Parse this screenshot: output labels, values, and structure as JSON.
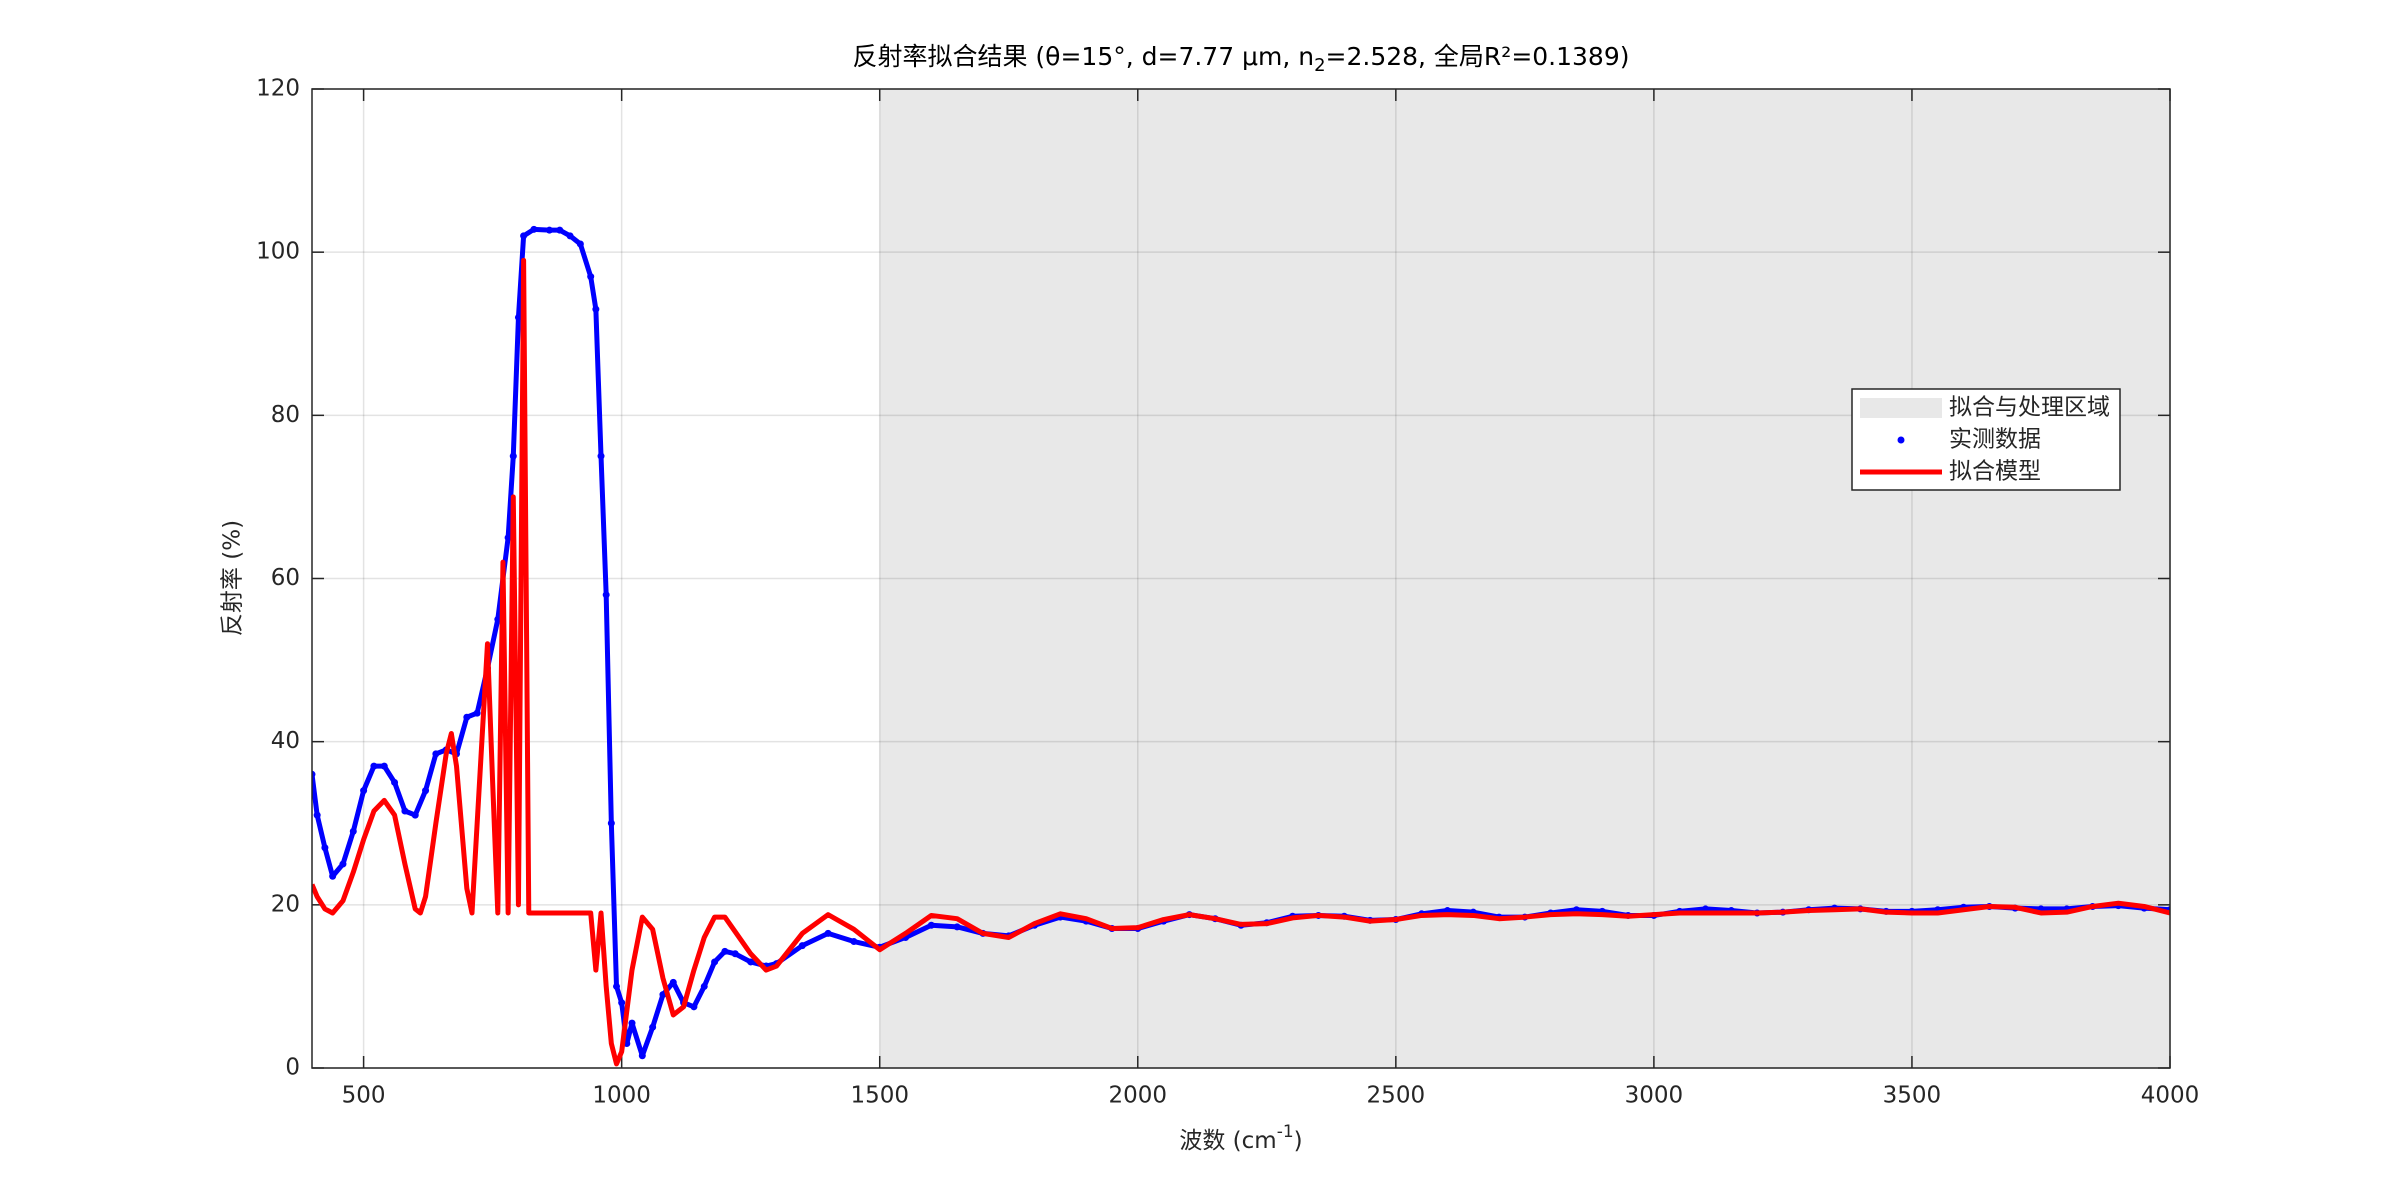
{
  "chart_data": {
    "type": "line",
    "title": [
      "反射率拟合结果 (θ=15°, d=7.77 μm, n",
      "2",
      "=2.528, 全局R²=0.1389)"
    ],
    "x_label": [
      "波数 (cm",
      "-1",
      ")"
    ],
    "y_label": "反射率 (%)",
    "xlim": [
      400,
      4000
    ],
    "xticks": [
      500,
      1000,
      1500,
      2000,
      2500,
      3000,
      3500,
      4000
    ],
    "ylim": [
      0,
      120
    ],
    "yticks": [
      0,
      20,
      40,
      60,
      80,
      100,
      120
    ],
    "grid": true,
    "legend_position": "right",
    "shaded_region": {
      "name": "拟合与处理区域",
      "x": [
        1500,
        4000
      ],
      "color": "#e8e8e8"
    },
    "series": [
      {
        "name": "实测数据",
        "color": "#0000ff",
        "style": "dots",
        "x": [
          400,
          410,
          425,
          440,
          460,
          480,
          500,
          520,
          540,
          560,
          580,
          600,
          620,
          640,
          660,
          680,
          700,
          720,
          740,
          760,
          780,
          790,
          800,
          810,
          830,
          860,
          880,
          900,
          920,
          940,
          950,
          960,
          970,
          980,
          990,
          1000,
          1010,
          1020,
          1040,
          1060,
          1080,
          1100,
          1120,
          1140,
          1160,
          1180,
          1200,
          1220,
          1250,
          1280,
          1300,
          1350,
          1400,
          1450,
          1500,
          1550,
          1600,
          1650,
          1700,
          1750,
          1800,
          1850,
          1900,
          1950,
          2000,
          2050,
          2100,
          2150,
          2200,
          2250,
          2300,
          2350,
          2400,
          2450,
          2500,
          2550,
          2600,
          2650,
          2700,
          2750,
          2800,
          2850,
          2900,
          2950,
          3000,
          3050,
          3100,
          3150,
          3200,
          3250,
          3300,
          3350,
          3400,
          3450,
          3500,
          3550,
          3600,
          3650,
          3700,
          3750,
          3800,
          3850,
          3900,
          3950,
          4000
        ],
        "values": [
          36,
          31,
          27,
          23.5,
          25,
          29,
          34,
          37,
          37,
          35,
          31.5,
          31,
          34,
          38.5,
          39,
          38.5,
          43,
          43.5,
          49,
          55,
          65,
          75,
          92,
          102,
          102.8,
          102.7,
          102.7,
          102,
          101,
          97,
          93,
          75,
          58,
          30,
          10,
          8,
          3,
          5.5,
          1.5,
          5,
          9,
          10.5,
          8,
          7.5,
          10,
          13,
          14.3,
          14,
          13,
          12.5,
          12.8,
          15,
          16.5,
          15.5,
          14.8,
          16,
          17.5,
          17.3,
          16.5,
          16.2,
          17.5,
          18.5,
          18,
          17.1,
          17.1,
          18,
          18.8,
          18.3,
          17.5,
          17.8,
          18.6,
          18.7,
          18.6,
          18.1,
          18.2,
          18.9,
          19.3,
          19.1,
          18.5,
          18.5,
          19,
          19.4,
          19.2,
          18.7,
          18.7,
          19.2,
          19.5,
          19.3,
          19,
          19.1,
          19.4,
          19.6,
          19.5,
          19.2,
          19.2,
          19.4,
          19.7,
          19.8,
          19.6,
          19.5,
          19.5,
          19.8,
          19.9,
          19.6,
          19.4
        ]
      },
      {
        "name": "拟合模型",
        "color": "#ff0000",
        "style": "line",
        "x": [
          400,
          410,
          425,
          440,
          460,
          480,
          500,
          520,
          540,
          560,
          580,
          600,
          610,
          620,
          640,
          660,
          670,
          680,
          700,
          710,
          720,
          740,
          750,
          760,
          770,
          780,
          790,
          800,
          810,
          820,
          830,
          900,
          940,
          950,
          960,
          970,
          980,
          990,
          1000,
          1020,
          1040,
          1060,
          1080,
          1100,
          1120,
          1140,
          1160,
          1180,
          1200,
          1250,
          1280,
          1300,
          1350,
          1400,
          1450,
          1500,
          1550,
          1600,
          1650,
          1700,
          1750,
          1800,
          1850,
          1900,
          1950,
          2000,
          2050,
          2100,
          2150,
          2200,
          2250,
          2300,
          2350,
          2400,
          2450,
          2500,
          2550,
          2600,
          2650,
          2700,
          2750,
          2800,
          2850,
          2900,
          2950,
          3000,
          3050,
          3100,
          3150,
          3200,
          3250,
          3300,
          3350,
          3400,
          3450,
          3500,
          3550,
          3600,
          3650,
          3700,
          3750,
          3800,
          3850,
          3900,
          3950,
          4000
        ],
        "values": [
          22.5,
          21,
          19.5,
          19,
          20.5,
          24,
          28,
          31.5,
          32.8,
          31,
          25,
          19.5,
          19,
          21,
          30,
          38.5,
          41,
          37,
          22,
          19,
          30,
          52,
          35,
          19,
          62,
          19,
          70,
          20,
          99,
          19,
          19,
          19,
          19,
          12,
          19,
          10,
          3,
          0.5,
          2,
          12,
          18.5,
          17,
          11,
          6.5,
          7.5,
          12,
          16,
          18.5,
          18.5,
          14,
          12,
          12.5,
          16.5,
          18.8,
          17,
          14.5,
          16.5,
          18.7,
          18.3,
          16.5,
          16,
          17.7,
          18.9,
          18.3,
          17.1,
          17.2,
          18.2,
          18.8,
          18.3,
          17.6,
          17.7,
          18.4,
          18.7,
          18.5,
          18,
          18.2,
          18.7,
          18.8,
          18.7,
          18.3,
          18.5,
          18.8,
          18.9,
          18.8,
          18.6,
          18.8,
          19,
          19,
          19,
          19,
          19.1,
          19.3,
          19.4,
          19.5,
          19.1,
          19,
          19,
          19.4,
          19.8,
          19.7,
          19,
          19.1,
          19.8,
          20.2,
          19.8,
          19
        ]
      }
    ]
  }
}
